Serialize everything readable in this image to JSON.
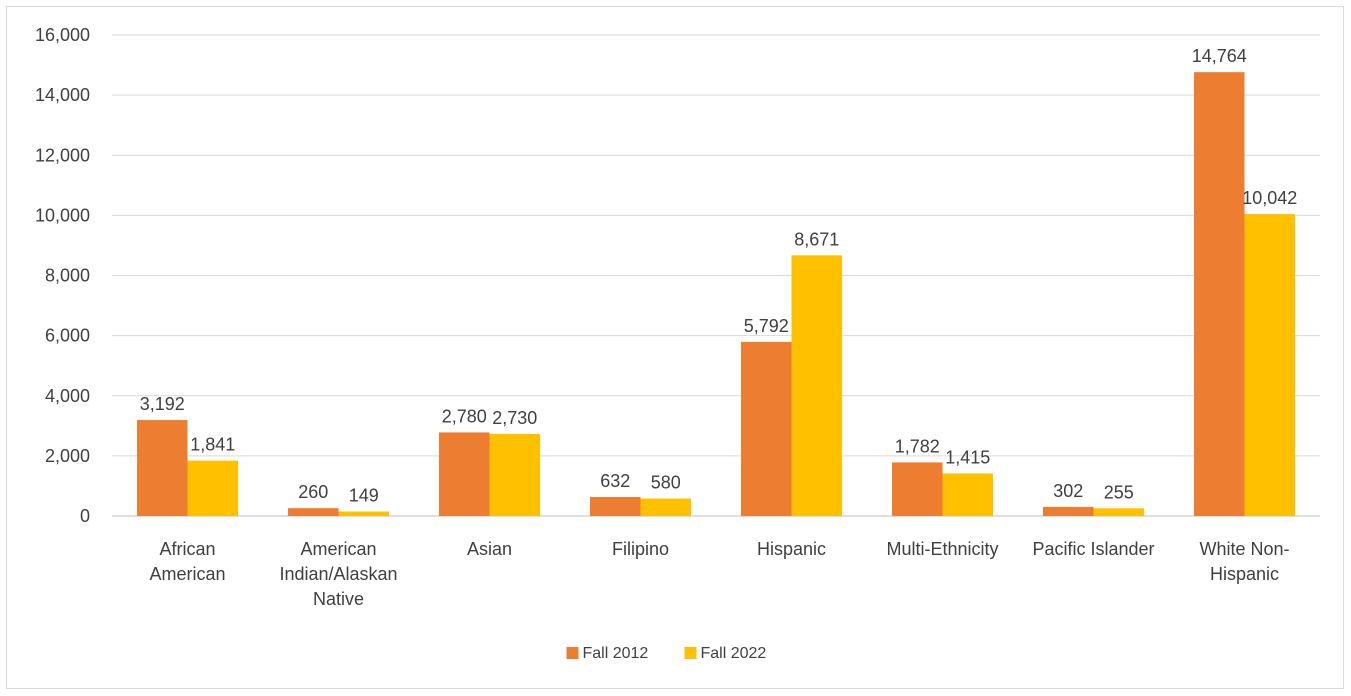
{
  "chart_data": {
    "type": "bar",
    "categories": [
      [
        "African",
        "American"
      ],
      [
        "American",
        "Indian/Alaskan",
        "Native"
      ],
      [
        "Asian"
      ],
      [
        "Filipino"
      ],
      [
        "Hispanic"
      ],
      [
        "Multi-Ethnicity"
      ],
      [
        "Pacific Islander"
      ],
      [
        "White Non-",
        "Hispanic"
      ]
    ],
    "series": [
      {
        "name": "Fall 2012",
        "color": "#ed7d31",
        "values": [
          3192,
          260,
          2780,
          632,
          5792,
          1782,
          302,
          14764
        ],
        "labels": [
          "3,192",
          "260",
          "2,780",
          "632",
          "5,792",
          "1,782",
          "302",
          "14,764"
        ]
      },
      {
        "name": "Fall 2022",
        "color": "#ffc000",
        "values": [
          1841,
          149,
          2730,
          580,
          8671,
          1415,
          255,
          10042
        ],
        "labels": [
          "1,841",
          "149",
          "2,730",
          "580",
          "8,671",
          "1,415",
          "255",
          "10,042"
        ]
      }
    ],
    "ylim": [
      0,
      16000
    ],
    "yticks": [
      0,
      2000,
      4000,
      6000,
      8000,
      10000,
      12000,
      14000,
      16000
    ],
    "ytick_labels": [
      "0",
      "2,000",
      "4,000",
      "6,000",
      "8,000",
      "10,000",
      "12,000",
      "14,000",
      "16,000"
    ],
    "grid": true,
    "legend_position": "bottom",
    "gridline_color": "#d9d9d9"
  }
}
